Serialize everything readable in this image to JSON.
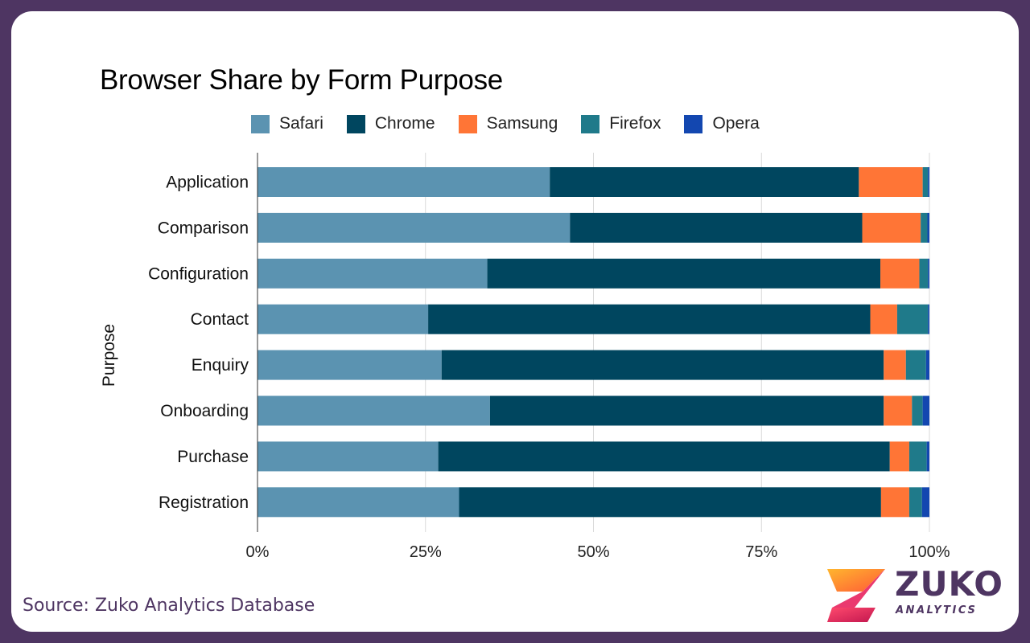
{
  "chart_data": {
    "type": "bar",
    "orientation": "horizontal",
    "stacked": true,
    "title": "Browser Share by Form Purpose",
    "ylabel": "Purpose",
    "xlabel": "",
    "xlim": [
      0,
      100
    ],
    "x_ticks": [
      "0%",
      "25%",
      "50%",
      "75%",
      "100%"
    ],
    "legend_position": "top",
    "grid": true,
    "categories": [
      "Application",
      "Comparison",
      "Configuration",
      "Contact",
      "Enquiry",
      "Onboarding",
      "Purchase",
      "Registration"
    ],
    "series": [
      {
        "name": "Safari",
        "color": "#5b93b1",
        "values": [
          43.5,
          46.5,
          34.2,
          25.4,
          27.4,
          34.6,
          26.9,
          30.0
        ]
      },
      {
        "name": "Chrome",
        "color": "#00465f",
        "values": [
          46.0,
          43.5,
          58.5,
          65.8,
          65.8,
          58.6,
          67.2,
          62.8
        ]
      },
      {
        "name": "Samsung",
        "color": "#ff7536",
        "values": [
          9.5,
          8.7,
          5.8,
          4.0,
          3.3,
          4.2,
          2.9,
          4.2
        ]
      },
      {
        "name": "Firefox",
        "color": "#1f7a8a",
        "values": [
          0.8,
          1.0,
          1.3,
          4.6,
          3.0,
          1.6,
          2.6,
          1.9
        ]
      },
      {
        "name": "Opera",
        "color": "#1347b0",
        "values": [
          0.2,
          0.3,
          0.2,
          0.2,
          0.5,
          1.0,
          0.4,
          1.1
        ]
      }
    ]
  },
  "footer": {
    "source": "Source: Zuko Analytics Database",
    "logo_word": "ZUKO",
    "logo_sub": "ANALYTICS"
  }
}
